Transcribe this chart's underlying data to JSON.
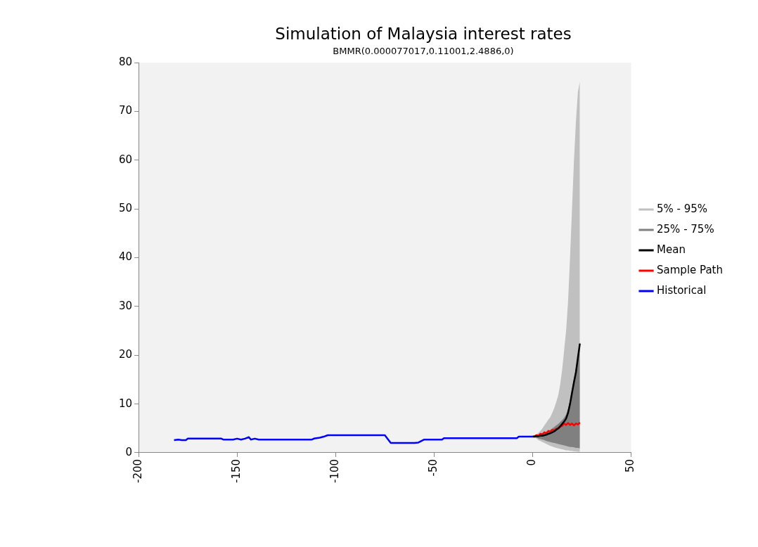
{
  "chart_data": {
    "type": "line",
    "title": "Simulation of Malaysia interest rates",
    "subtitle": "BMMR(0.000077017,0.11001,2.4886,0)",
    "xlim": [
      -200,
      50
    ],
    "xticks": [
      -200,
      -150,
      -100,
      -50,
      0,
      50
    ],
    "ylim": [
      0,
      80
    ],
    "yticks": [
      0,
      10,
      20,
      30,
      40,
      50,
      60,
      70,
      80
    ],
    "grid": false,
    "legend": "right",
    "marker": "none",
    "series": [
      {
        "name": "5% - 95%",
        "type": "area",
        "color": "#c0c0c0",
        "x": [
          0,
          1,
          2,
          3,
          4,
          5,
          6,
          7,
          8,
          9,
          10,
          11,
          12,
          13,
          14,
          15,
          16,
          17,
          18,
          19,
          20,
          21,
          22,
          23,
          24
        ],
        "values": [
          null,
          null,
          null,
          null,
          null,
          null,
          null,
          null,
          null,
          null,
          null,
          null,
          null,
          null,
          null,
          null,
          null,
          null,
          null,
          null,
          null,
          null,
          null,
          null,
          null
        ],
        "lower": [
          3.3,
          3.1,
          2.9,
          2.6,
          2.4,
          2.2,
          2,
          1.8,
          1.6,
          1.4,
          1.3,
          1.1,
          1,
          0.9,
          0.8,
          0.7,
          0.6,
          0.5,
          0.5,
          0.4,
          0.4,
          0.3,
          0.3,
          0.2,
          0.2
        ],
        "upper": [
          3.3,
          3.5,
          3.8,
          4.1,
          4.5,
          5,
          5.6,
          6.2,
          6.8,
          7.3,
          8.2,
          9.2,
          10.4,
          11.8,
          14,
          17,
          21,
          25,
          31,
          40,
          50,
          60,
          68,
          74,
          76.2
        ]
      },
      {
        "name": "25% - 75%",
        "type": "area",
        "color": "#808080",
        "x": [
          0,
          1,
          2,
          3,
          4,
          5,
          6,
          7,
          8,
          9,
          10,
          11,
          12,
          13,
          14,
          15,
          16,
          17,
          18,
          19,
          20,
          21,
          22,
          23,
          24
        ],
        "values": [
          null,
          null,
          null,
          null,
          null,
          null,
          null,
          null,
          null,
          null,
          null,
          null,
          null,
          null,
          null,
          null,
          null,
          null,
          null,
          null,
          null,
          null,
          null,
          null,
          null
        ],
        "lower": [
          3.3,
          3.2,
          3.1,
          2.9,
          2.8,
          2.7,
          2.6,
          2.4,
          2.3,
          2.2,
          2.1,
          2,
          1.9,
          1.8,
          1.7,
          1.6,
          1.5,
          1.4,
          1.3,
          1.2,
          1.2,
          1.1,
          1,
          1,
          0.9
        ],
        "upper": [
          3.3,
          3.4,
          3.5,
          3.6,
          3.8,
          3.9,
          4.1,
          4.3,
          4.5,
          4.7,
          5,
          5.3,
          5.6,
          5.9,
          6.3,
          6.7,
          7.2,
          7.8,
          9,
          10.8,
          13,
          15.3,
          17.5,
          20.3,
          22.8
        ]
      },
      {
        "name": "Mean",
        "type": "line",
        "color": "#000000",
        "x": [
          0,
          1,
          2,
          3,
          4,
          5,
          6,
          7,
          8,
          9,
          10,
          11,
          12,
          13,
          14,
          15,
          16,
          17,
          18,
          19,
          20,
          21,
          22,
          23,
          24
        ],
        "values": [
          3.3,
          3.3,
          3.4,
          3.4,
          3.5,
          3.5,
          3.6,
          3.7,
          3.9,
          4,
          4.2,
          4.4,
          4.7,
          5,
          5.4,
          5.9,
          6.4,
          7,
          8.2,
          10,
          12.3,
          14.5,
          16.5,
          19.5,
          22.4
        ]
      },
      {
        "name": "Sample Path",
        "type": "line",
        "color": "#ff0000",
        "x": [
          0,
          1,
          2,
          3,
          4,
          5,
          6,
          7,
          8,
          9,
          10,
          11,
          12,
          13,
          14,
          15,
          16,
          17,
          18,
          19,
          20,
          21,
          22,
          23,
          24
        ],
        "values": [
          3.3,
          3.4,
          3.6,
          3.5,
          3.9,
          3.8,
          4.2,
          4,
          4.5,
          4.3,
          4.7,
          4.6,
          4.9,
          5,
          5.4,
          5.5,
          6,
          5.7,
          6.1,
          5.7,
          6,
          5.6,
          6,
          5.8,
          6.2
        ]
      },
      {
        "name": "Historical",
        "type": "line",
        "color": "#0000ff",
        "x": [
          -182,
          -180,
          -178,
          -176,
          -175,
          -158,
          -157,
          -152,
          -150,
          -148,
          -146,
          -144,
          -143,
          -141,
          -139,
          -112,
          -111,
          -108,
          -106,
          -104,
          -75,
          -72,
          -60,
          -58,
          -55,
          -46,
          -45,
          -8,
          -7,
          0
        ],
        "values": [
          2.6,
          2.7,
          2.6,
          2.6,
          2.9,
          2.9,
          2.7,
          2.7,
          2.9,
          2.7,
          2.9,
          3.2,
          2.7,
          2.9,
          2.7,
          2.7,
          2.9,
          3.1,
          3.3,
          3.6,
          3.6,
          2,
          2,
          2.1,
          2.7,
          2.7,
          3,
          3,
          3.3,
          3.3
        ]
      }
    ]
  }
}
